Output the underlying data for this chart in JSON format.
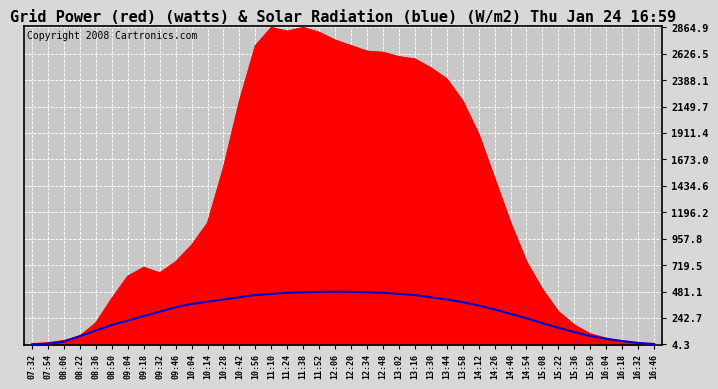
{
  "title": "Grid Power (red) (watts) & Solar Radiation (blue) (W/m2) Thu Jan 24 16:59",
  "copyright": "Copyright 2008 Cartronics.com",
  "yticks": [
    4.3,
    242.7,
    481.1,
    719.5,
    957.8,
    1196.2,
    1434.6,
    1673.0,
    1911.4,
    2149.7,
    2388.1,
    2626.5,
    2864.9
  ],
  "ymin": 4.3,
  "ymax": 2864.9,
  "xtick_labels": [
    "07:32",
    "07:54",
    "08:06",
    "08:22",
    "08:36",
    "08:50",
    "09:04",
    "09:18",
    "09:32",
    "09:46",
    "10:04",
    "10:14",
    "10:28",
    "10:42",
    "10:56",
    "11:10",
    "11:24",
    "11:38",
    "11:52",
    "12:06",
    "12:20",
    "12:34",
    "12:48",
    "13:02",
    "13:16",
    "13:30",
    "13:44",
    "13:58",
    "14:12",
    "14:26",
    "14:40",
    "14:54",
    "15:08",
    "15:22",
    "15:36",
    "15:50",
    "16:04",
    "16:18",
    "16:32",
    "16:46"
  ],
  "red_data": [
    10,
    20,
    40,
    80,
    200,
    420,
    620,
    700,
    650,
    750,
    900,
    1100,
    1600,
    2200,
    2700,
    2864,
    2830,
    2864,
    2820,
    2750,
    2700,
    2650,
    2640,
    2600,
    2580,
    2500,
    2400,
    2200,
    1900,
    1500,
    1100,
    750,
    500,
    300,
    180,
    100,
    60,
    30,
    15,
    5
  ],
  "blue_data": [
    4.3,
    10,
    30,
    80,
    130,
    180,
    220,
    260,
    300,
    340,
    370,
    390,
    410,
    430,
    450,
    460,
    470,
    475,
    478,
    480,
    478,
    475,
    470,
    460,
    450,
    430,
    410,
    385,
    355,
    320,
    280,
    240,
    195,
    155,
    115,
    80,
    55,
    35,
    18,
    8
  ],
  "bg_color": "#d8d8d8",
  "plot_bg": "#c8c8c8",
  "grid_color": "#ffffff",
  "red_color": "#ff0000",
  "blue_color": "#0000cc",
  "title_fontsize": 11,
  "copyright_fontsize": 7
}
